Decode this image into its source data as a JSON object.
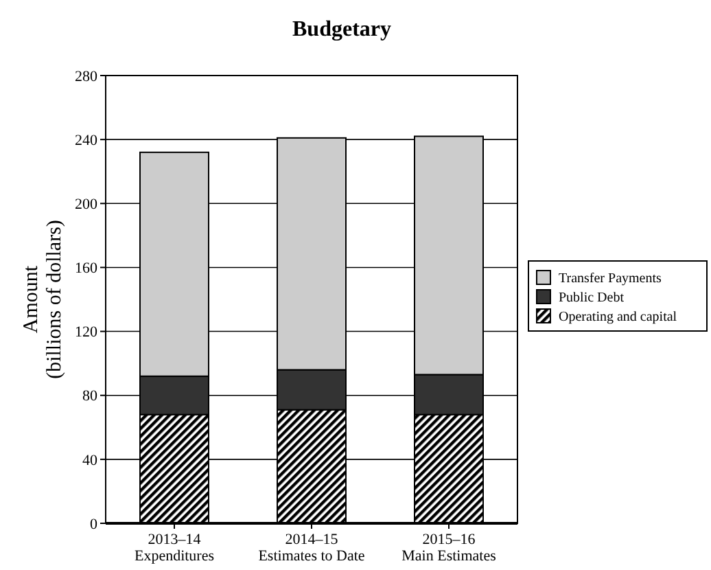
{
  "chart_data": {
    "type": "bar",
    "title": "Budgetary",
    "ylabel": "Amount\n(billions of dollars)",
    "categories": [
      "2013–14\nExpenditures",
      "2014–15\nEstimates to Date",
      "2015–16\nMain Estimates"
    ],
    "stacked": true,
    "series": [
      {
        "name": "Operating and capital",
        "color": "#000000",
        "values": [
          68,
          71,
          68
        ]
      },
      {
        "name": "Public Debt",
        "color": "#333333",
        "values": [
          24,
          25,
          25
        ]
      },
      {
        "name": "Transfer Payments",
        "color": "#cccccc",
        "values": [
          140,
          145,
          149
        ]
      }
    ],
    "ylim": [
      0,
      280
    ],
    "yticks": [
      0,
      40,
      80,
      120,
      160,
      200,
      240,
      280
    ],
    "grid": "y",
    "legend": "right"
  }
}
